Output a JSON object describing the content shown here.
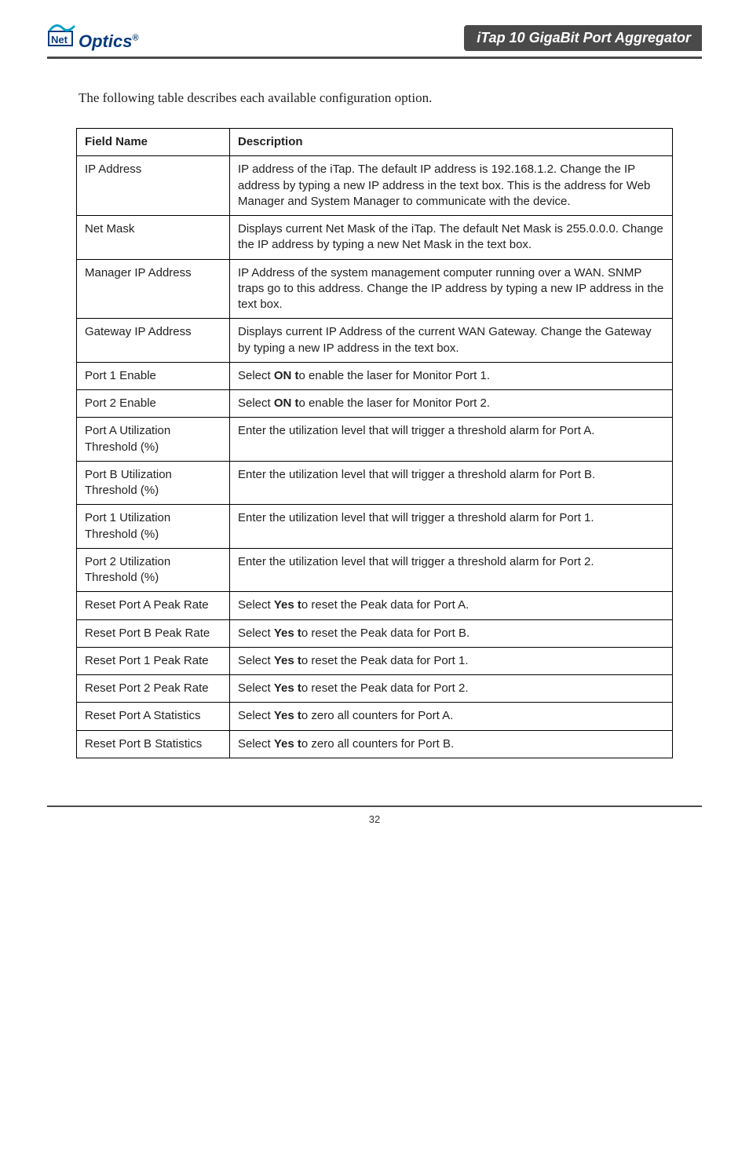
{
  "header": {
    "logo_net": "Net",
    "logo_optics": "Optics",
    "logo_reg": "®",
    "title": "iTap 10 GigaBit Port Aggregator"
  },
  "intro": "The following table describes each available configuration option.",
  "table": {
    "head_field": "Field Name",
    "head_desc": "Description",
    "rows": [
      {
        "field": "IP Address",
        "desc_pre": "IP address of the iTap. The default IP address is 192.168.1.2. Change the IP address by typing a new IP address in the text box. This is the address for Web Manager and System Manager to communicate with the device."
      },
      {
        "field": "Net Mask",
        "desc_pre": "Displays current Net Mask of the iTap. The default Net Mask is 255.0.0.0. Change the IP address by typing a new Net Mask in the text box."
      },
      {
        "field": "Manager IP Address",
        "desc_pre": "IP Address of the system management computer running over a WAN. SNMP traps go to this address. Change the IP address by typing a new IP address in the text box."
      },
      {
        "field": "Gateway IP Address",
        "desc_pre": "Displays current IP Address of the current WAN Gateway. Change the Gateway by typing a new IP address in the text box."
      },
      {
        "field": "Port 1 Enable",
        "desc_pre": "Select ",
        "bold": "ON t",
        "desc_post": "o enable the laser for Monitor Port 1."
      },
      {
        "field": "Port 2 Enable",
        "desc_pre": "Select ",
        "bold": "ON t",
        "desc_post": "o enable the laser for Monitor Port 2."
      },
      {
        "field": "Port A Utilization Threshold (%)",
        "desc_pre": "Enter the utilization level that will trigger a threshold alarm for Port A."
      },
      {
        "field": "Port B Utilization Threshold (%)",
        "desc_pre": "Enter the utilization level that will trigger a threshold alarm for Port B."
      },
      {
        "field": "Port 1 Utilization Threshold (%)",
        "desc_pre": "Enter the utilization level that will trigger a threshold alarm for Port 1."
      },
      {
        "field": "Port 2 Utilization Threshold (%)",
        "desc_pre": "Enter the utilization level that will trigger a threshold alarm for Port 2."
      },
      {
        "field": "Reset Port A Peak Rate",
        "desc_pre": "Select ",
        "bold": "Yes t",
        "desc_post": "o reset the Peak data for Port A."
      },
      {
        "field": "Reset Port B Peak Rate",
        "desc_pre": "Select ",
        "bold": "Yes t",
        "desc_post": "o  reset the Peak data for Port B."
      },
      {
        "field": "Reset Port 1 Peak Rate",
        "desc_pre": "Select ",
        "bold": "Yes t",
        "desc_post": "o  reset the Peak data for Port 1."
      },
      {
        "field": "Reset Port 2 Peak Rate",
        "desc_pre": "Select ",
        "bold": "Yes t",
        "desc_post": "o  reset the Peak data for Port 2."
      },
      {
        "field": "Reset Port A Statistics",
        "desc_pre": "Select ",
        "bold": "Yes t",
        "desc_post": "o  zero all counters for Port A."
      },
      {
        "field": "Reset Port B Statistics",
        "desc_pre": "Select ",
        "bold": "Yes t",
        "desc_post": "o  zero all counters for Port B."
      }
    ]
  },
  "footer": {
    "page": "32"
  },
  "colors": {
    "bar_bg": "#4a4a4a",
    "bar_fg": "#ffffff",
    "rule": "#4a4a4a",
    "text": "#222222",
    "logo_blue": "#0a3a7a",
    "logo_tilde": "#0aa0c8"
  }
}
